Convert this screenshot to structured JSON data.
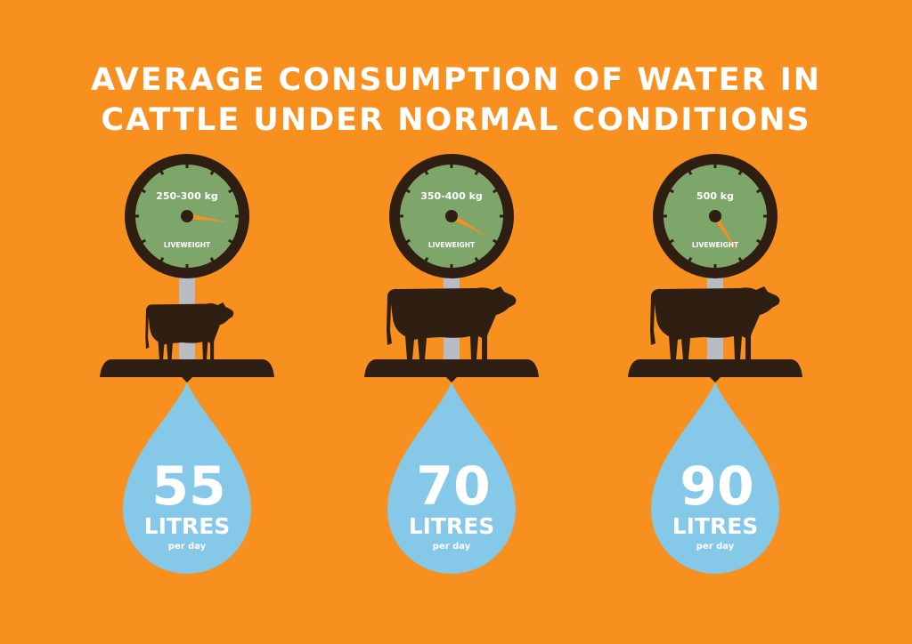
{
  "title": {
    "line1": "AVERAGE CONSUMPTION OF WATER IN",
    "line2": "CATTLE UNDER NORMAL CONDITIONS"
  },
  "colors": {
    "background": "#F7901E",
    "dark_brown": "#2E1F12",
    "dial_green": "#7FA66A",
    "needle_orange": "#F7901E",
    "water_blue": "#86C8E8",
    "pole_gray": "#B9BCC3"
  },
  "panels": [
    {
      "weight": "250-300 kg",
      "dial_label": "LIVEWEIGHT",
      "animal": "calf",
      "amount": "55",
      "unit": "LITRES",
      "period": "per day"
    },
    {
      "weight": "350-400 kg",
      "dial_label": "LIVEWEIGHT",
      "animal": "cow",
      "amount": "70",
      "unit": "LITRES",
      "period": "per day"
    },
    {
      "weight": "500 kg",
      "dial_label": "LIVEWEIGHT",
      "animal": "cow",
      "amount": "90",
      "unit": "LITRES",
      "period": "per day"
    }
  ]
}
